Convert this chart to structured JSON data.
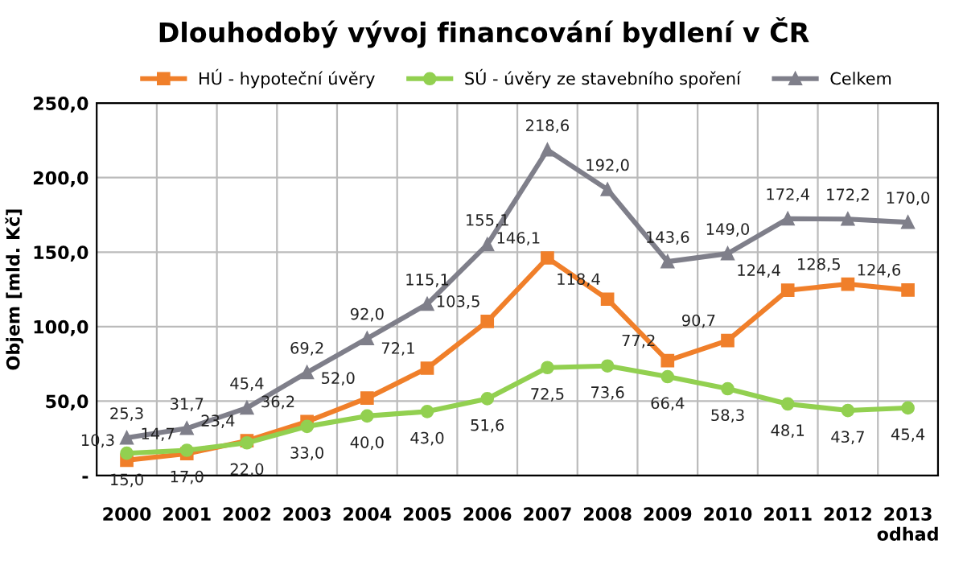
{
  "chart_data": {
    "type": "line",
    "title": "Dlouhodobý vývoj financování bydlení v ČR",
    "ylabel": "Objem [mld. Kč]",
    "categories": [
      "2000",
      "2001",
      "2002",
      "2003",
      "2004",
      "2005",
      "2006",
      "2007",
      "2008",
      "2009",
      "2010",
      "2011",
      "2012",
      "2013\nodhad"
    ],
    "series": [
      {
        "name": "HÚ - hypoteční úvěry",
        "color": "#f07f2a",
        "marker": "square",
        "values": [
          10.3,
          14.7,
          23.4,
          36.2,
          52.0,
          72.1,
          103.5,
          146.1,
          118.4,
          77.2,
          90.7,
          124.4,
          128.5,
          124.6
        ],
        "value_labels": [
          "10,3",
          "14,7",
          "23,4",
          "36,2",
          "52,0",
          "72,1",
          "103,5",
          "146,1",
          "118,4",
          "77,2",
          "90,7",
          "124,4",
          "128,5",
          "124,6"
        ]
      },
      {
        "name": "SÚ - úvěry ze stavebního spoření",
        "color": "#92d050",
        "marker": "circle",
        "values": [
          15.0,
          17.0,
          22.0,
          33.0,
          40.0,
          43.0,
          51.6,
          72.5,
          73.6,
          66.4,
          58.3,
          48.1,
          43.7,
          45.4
        ],
        "value_labels": [
          "15,0",
          "17,0",
          "22,0",
          "33,0",
          "40,0",
          "43,0",
          "51,6",
          "72,5",
          "73,6",
          "66,4",
          "58,3",
          "48,1",
          "43,7",
          "45,4"
        ]
      },
      {
        "name": "Celkem",
        "color": "#7f7f8a",
        "marker": "triangle",
        "values": [
          25.3,
          31.7,
          45.4,
          69.2,
          92.0,
          115.1,
          155.1,
          218.6,
          192.0,
          143.6,
          149.0,
          172.4,
          172.2,
          170.0
        ],
        "value_labels": [
          "25,3",
          "31,7",
          "45,4",
          "69,2",
          "92,0",
          "115,1",
          "155,1",
          "218,6",
          "192,0",
          "143,6",
          "149,0",
          "172,4",
          "172,2",
          "170,0"
        ]
      }
    ],
    "ylim": [
      0,
      250
    ],
    "yticks": [
      {
        "value": 0,
        "label": "-"
      },
      {
        "value": 50,
        "label": "50,0"
      },
      {
        "value": 100,
        "label": "100,0"
      },
      {
        "value": 150,
        "label": "150,0"
      },
      {
        "value": 200,
        "label": "200,0"
      },
      {
        "value": 250,
        "label": "250,0"
      }
    ],
    "grid": true,
    "legend": "top",
    "line_style": "solid"
  }
}
